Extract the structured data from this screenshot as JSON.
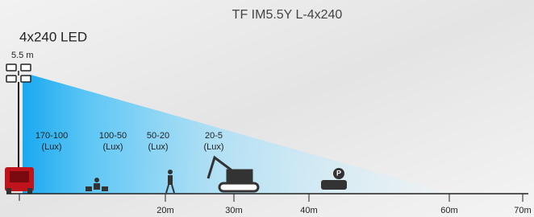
{
  "title": "TF IM5.5Y L-4x240",
  "model": "4x240 LED",
  "height": "5.5 m",
  "zones": [
    {
      "range": "170-100",
      "unit": "(Lux)"
    },
    {
      "range": "100-50",
      "unit": "(Lux)"
    },
    {
      "range": "50-20",
      "unit": "(Lux)"
    },
    {
      "range": "20-5",
      "unit": "(Lux)"
    }
  ],
  "distances": [
    "20m",
    "30m",
    "40m",
    "60m",
    "70m"
  ]
}
